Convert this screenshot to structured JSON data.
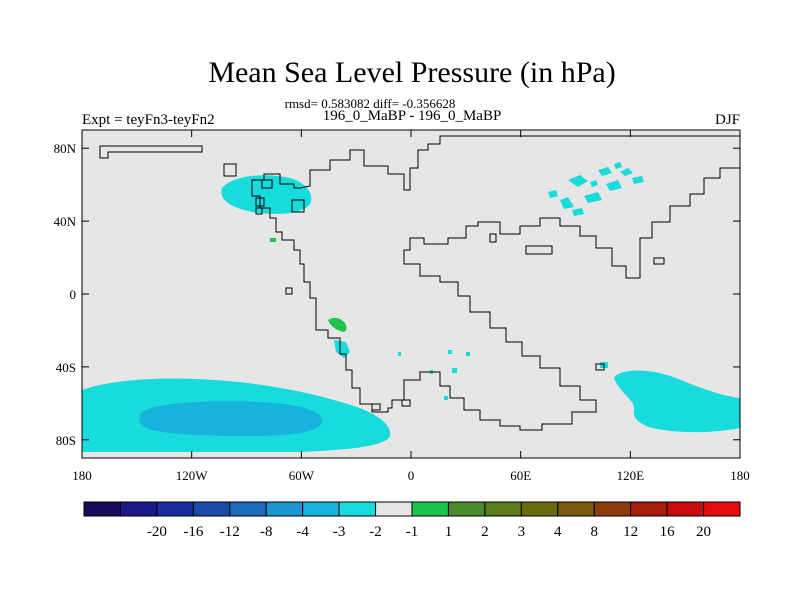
{
  "chart_data": {
    "type": "heatmap",
    "title": "Mean Sea Level Pressure (in hPa)",
    "stats_text": "rmsd= 0.583082 diff= -0.356628",
    "left_label": "Expt = teyFn3-teyFn2",
    "center_label": "196_0_MaBP - 196_0_MaBP",
    "right_label": "DJF",
    "x_ticks": [
      {
        "value": -180,
        "label": "180"
      },
      {
        "value": -120,
        "label": "120W"
      },
      {
        "value": -60,
        "label": "60W"
      },
      {
        "value": 0,
        "label": "0"
      },
      {
        "value": 60,
        "label": "60E"
      },
      {
        "value": 120,
        "label": "120E"
      },
      {
        "value": 180,
        "label": "180"
      }
    ],
    "y_ticks": [
      {
        "value": 80,
        "label": "80N"
      },
      {
        "value": 40,
        "label": "40N"
      },
      {
        "value": 0,
        "label": "0"
      },
      {
        "value": -40,
        "label": "40S"
      },
      {
        "value": -80,
        "label": "80S"
      }
    ],
    "xlim": [
      -180,
      180
    ],
    "ylim": [
      -90,
      90
    ],
    "colorbar": {
      "colors": [
        "#1a0a5c",
        "#1c1a8a",
        "#1b2c9c",
        "#1a4aaa",
        "#1a6cbc",
        "#1a96cf",
        "#18b2dc",
        "#18dcdc",
        "#e6e6e6",
        "#1ec44e",
        "#4a8a2c",
        "#5a7a1c",
        "#6a6a10",
        "#7a5a10",
        "#8c3c0c",
        "#a81c0c",
        "#c80c0c",
        "#e60a0a"
      ],
      "labels": [
        "-20",
        "-16",
        "-12",
        "-8",
        "-4",
        "-3",
        "-2",
        "-1",
        "1",
        "2",
        "3",
        "4",
        "8",
        "12",
        "16",
        "20"
      ]
    },
    "regions": [
      {
        "name": "north-pacific-neg",
        "level": "-2 to -1",
        "color": "#18dcdc"
      },
      {
        "name": "southern-ocean-neg",
        "level": "-2 to -1",
        "color": "#18dcdc"
      },
      {
        "name": "southern-ocean-core",
        "level": "-3 to -2",
        "color": "#18b2dc"
      },
      {
        "name": "south-indian-neg",
        "level": "-2 to -1",
        "color": "#18dcdc"
      },
      {
        "name": "central-asia-neg",
        "level": "-2 to -1",
        "color": "#18dcdc"
      },
      {
        "name": "south-america-neg",
        "level": "-2 to -1",
        "color": "#18dcdc"
      },
      {
        "name": "brazil-pos",
        "level": "1 to 2",
        "color": "#1ec44e"
      },
      {
        "name": "north-america-pos",
        "level": "1 to 2",
        "color": "#1ec44e"
      }
    ]
  }
}
